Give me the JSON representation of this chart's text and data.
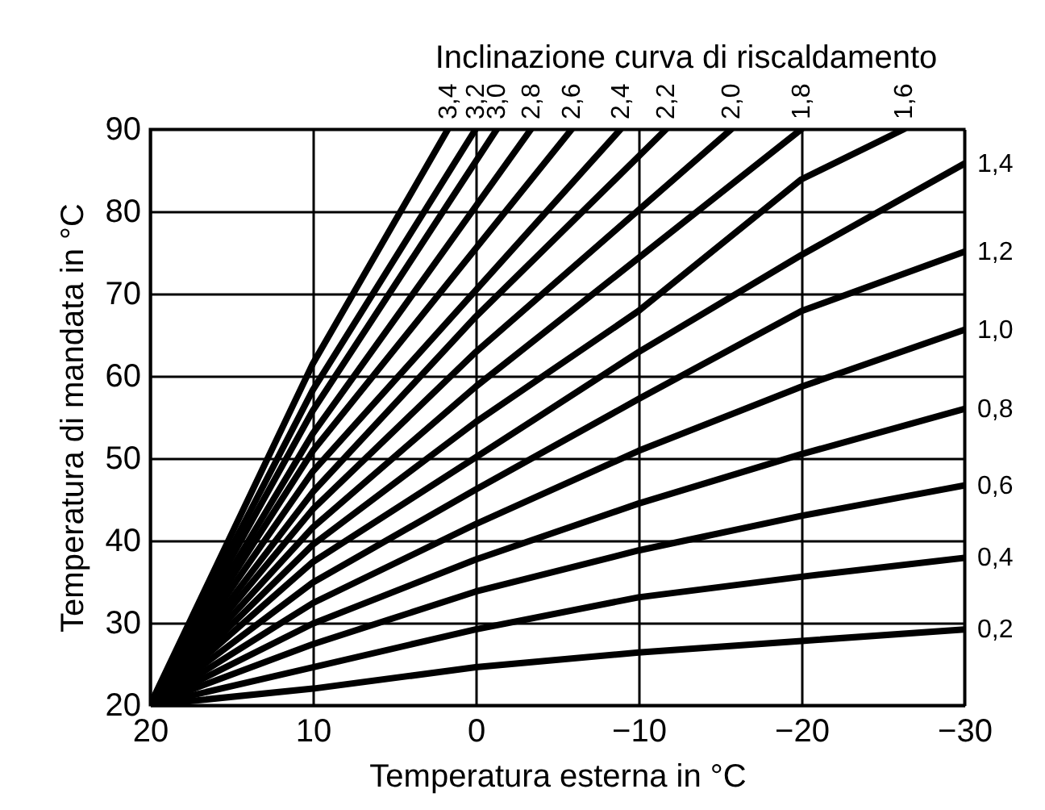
{
  "chart_data": {
    "type": "line",
    "legend_title": "Inclinazione curva di riscaldamento",
    "xlabel": "Temperatura esterna in °C",
    "ylabel": "Temperatura di mandata in °C",
    "xlim": [
      20,
      -30
    ],
    "xticks": [
      20,
      10,
      0,
      -10,
      -20,
      -30
    ],
    "ylim": [
      20,
      90
    ],
    "yticks": [
      20,
      30,
      40,
      50,
      60,
      70,
      80,
      90
    ],
    "grid": true,
    "series": [
      {
        "name": "0,2",
        "color": "#000000",
        "x": [
          20,
          10,
          0,
          -10,
          -20,
          -30
        ],
        "values": [
          20,
          22.0,
          24.6,
          26.4,
          27.8,
          29.2
        ]
      },
      {
        "name": "0,4",
        "color": "#000000",
        "x": [
          20,
          10,
          0,
          -10,
          -20,
          -30
        ],
        "values": [
          20,
          24.6,
          29.2,
          33.1,
          35.6,
          37.9
        ]
      },
      {
        "name": "0,6",
        "color": "#000000",
        "x": [
          20,
          10,
          0,
          -10,
          -20,
          -30
        ],
        "values": [
          20,
          27.4,
          33.8,
          38.8,
          43.0,
          46.7
        ]
      },
      {
        "name": "0,8",
        "color": "#000000",
        "x": [
          20,
          10,
          0,
          -10,
          -20,
          -30
        ],
        "values": [
          20,
          29.9,
          37.7,
          44.5,
          50.5,
          56.0
        ]
      },
      {
        "name": "1,0",
        "color": "#000000",
        "x": [
          20,
          10,
          0,
          -10,
          -20,
          -30
        ],
        "values": [
          20,
          32.4,
          42.0,
          50.9,
          58.7,
          65.6
        ]
      },
      {
        "name": "1,2",
        "color": "#000000",
        "x": [
          20,
          10,
          0,
          -10,
          -20,
          -30
        ],
        "values": [
          20,
          34.9,
          46.2,
          57.2,
          67.9,
          75.1
        ]
      },
      {
        "name": "1,4",
        "color": "#000000",
        "x": [
          20,
          10,
          0,
          -10,
          -20,
          -30
        ],
        "values": [
          20,
          37.4,
          50.1,
          62.9,
          74.7,
          85.8
        ]
      },
      {
        "name": "1,6",
        "color": "#000000",
        "x": [
          20,
          10,
          0,
          -10,
          -20,
          -26.3
        ],
        "values": [
          20,
          39.5,
          54.4,
          67.9,
          83.9,
          90
        ]
      },
      {
        "name": "1,8",
        "color": "#000000",
        "x": [
          20,
          10,
          0,
          -20
        ],
        "values": [
          20,
          41.6,
          58.7,
          90
        ]
      },
      {
        "name": "2,0",
        "color": "#000000",
        "x": [
          20,
          10,
          0,
          -15.7
        ],
        "values": [
          20,
          43.8,
          62.9,
          90
        ]
      },
      {
        "name": "2,2",
        "color": "#000000",
        "x": [
          20,
          10,
          0,
          -11.7
        ],
        "values": [
          20,
          45.9,
          67.2,
          90
        ]
      },
      {
        "name": "2,4",
        "color": "#000000",
        "x": [
          20,
          10,
          -8.9
        ],
        "values": [
          20,
          48.4,
          90
        ]
      },
      {
        "name": "2,6",
        "color": "#000000",
        "x": [
          20,
          10,
          -5.9
        ],
        "values": [
          20,
          50.9,
          90
        ]
      },
      {
        "name": "2,8",
        "color": "#000000",
        "x": [
          20,
          10,
          -3.4
        ],
        "values": [
          20,
          53.0,
          90
        ]
      },
      {
        "name": "3,0",
        "color": "#000000",
        "x": [
          20,
          10,
          -1.3
        ],
        "values": [
          20,
          55.8,
          90
        ]
      },
      {
        "name": "3,2",
        "color": "#000000",
        "x": [
          20,
          10,
          0
        ],
        "values": [
          20,
          58.3,
          90
        ]
      },
      {
        "name": "3,4",
        "color": "#000000",
        "x": [
          20,
          10,
          1.7
        ],
        "values": [
          20,
          61.5,
          90
        ]
      }
    ]
  }
}
